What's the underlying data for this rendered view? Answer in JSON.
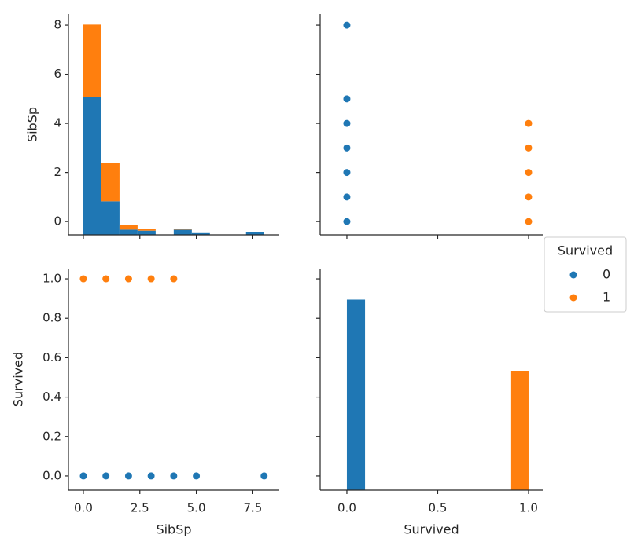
{
  "chart_data": [
    {
      "type": "histogram",
      "ylabel": "SibSp",
      "bins": [
        0,
        0.8,
        1.6,
        2.4,
        3.2,
        4.0,
        4.8,
        5.6,
        6.4,
        7.2,
        8.0
      ],
      "series": [
        {
          "name": "0",
          "color": "#1f77b4",
          "values": [
            398,
            97,
            15,
            12,
            0,
            15,
            5,
            0,
            0,
            7
          ]
        },
        {
          "name": "1",
          "color": "#ff7f0e",
          "values": [
            210,
            112,
            13,
            4,
            0,
            3,
            0,
            0,
            0,
            0
          ]
        }
      ],
      "xlim": [
        -0.66,
        8.67
      ],
      "ylim": [
        0,
        638.4
      ],
      "yticks": [
        0,
        2,
        4,
        6,
        8
      ]
    },
    {
      "type": "scatter",
      "legend_title": "Survived",
      "series": [
        {
          "name": "0",
          "color": "#1f77b4",
          "x": [
            0,
            0,
            0,
            0,
            0,
            0,
            0
          ],
          "values": [
            8,
            5,
            4,
            3,
            2,
            1,
            0
          ]
        },
        {
          "name": "1",
          "color": "#ff7f0e",
          "x": [
            1,
            1,
            1,
            1,
            1
          ],
          "values": [
            4,
            3,
            2,
            1,
            0
          ]
        }
      ],
      "xlim": [
        -0.147,
        1.078
      ],
      "ylim": [
        -0.54,
        8.45
      ]
    },
    {
      "type": "scatter",
      "xlabel": "SibSp",
      "ylabel": "Survived",
      "series": [
        {
          "name": "0",
          "color": "#1f77b4",
          "x": [
            0,
            1,
            2,
            3,
            4,
            5,
            8
          ],
          "values": [
            0,
            0,
            0,
            0,
            0,
            0,
            0
          ]
        },
        {
          "name": "1",
          "color": "#ff7f0e",
          "x": [
            0,
            1,
            2,
            3,
            4
          ],
          "values": [
            1,
            1,
            1,
            1,
            1
          ]
        }
      ],
      "xlim": [
        -0.66,
        8.67
      ],
      "ylim": [
        -0.072,
        1.052
      ],
      "xticks": [
        {
          "value": 0,
          "label": "0.0"
        },
        {
          "value": 2.5,
          "label": "2.5"
        },
        {
          "value": 5,
          "label": "5.0"
        },
        {
          "value": 7.5,
          "label": "7.5"
        }
      ],
      "yticks": [
        {
          "value": 0,
          "label": "0.0"
        },
        {
          "value": 0.2,
          "label": "0.2"
        },
        {
          "value": 0.4,
          "label": "0.4"
        },
        {
          "value": 0.6,
          "label": "0.6"
        },
        {
          "value": 0.8,
          "label": "0.8"
        },
        {
          "value": 1,
          "label": "1.0"
        }
      ]
    },
    {
      "type": "histogram",
      "xlabel": "Survived",
      "bins": [
        0,
        0.1,
        0.2,
        0.3,
        0.4,
        0.5,
        0.6,
        0.7,
        0.8,
        0.9,
        1.0
      ],
      "series": [
        {
          "name": "0",
          "color": "#1f77b4",
          "values": [
            549,
            0,
            0,
            0,
            0,
            0,
            0,
            0,
            0,
            0
          ]
        },
        {
          "name": "1",
          "color": "#ff7f0e",
          "values": [
            0,
            0,
            0,
            0,
            0,
            0,
            0,
            0,
            0,
            342
          ]
        }
      ],
      "xlim": [
        -0.147,
        1.078
      ],
      "ylim": [
        0,
        638.4
      ],
      "xticks": [
        {
          "value": 0,
          "label": "0.0"
        },
        {
          "value": 0.5,
          "label": "0.5"
        },
        {
          "value": 1,
          "label": "1.0"
        }
      ]
    }
  ]
}
